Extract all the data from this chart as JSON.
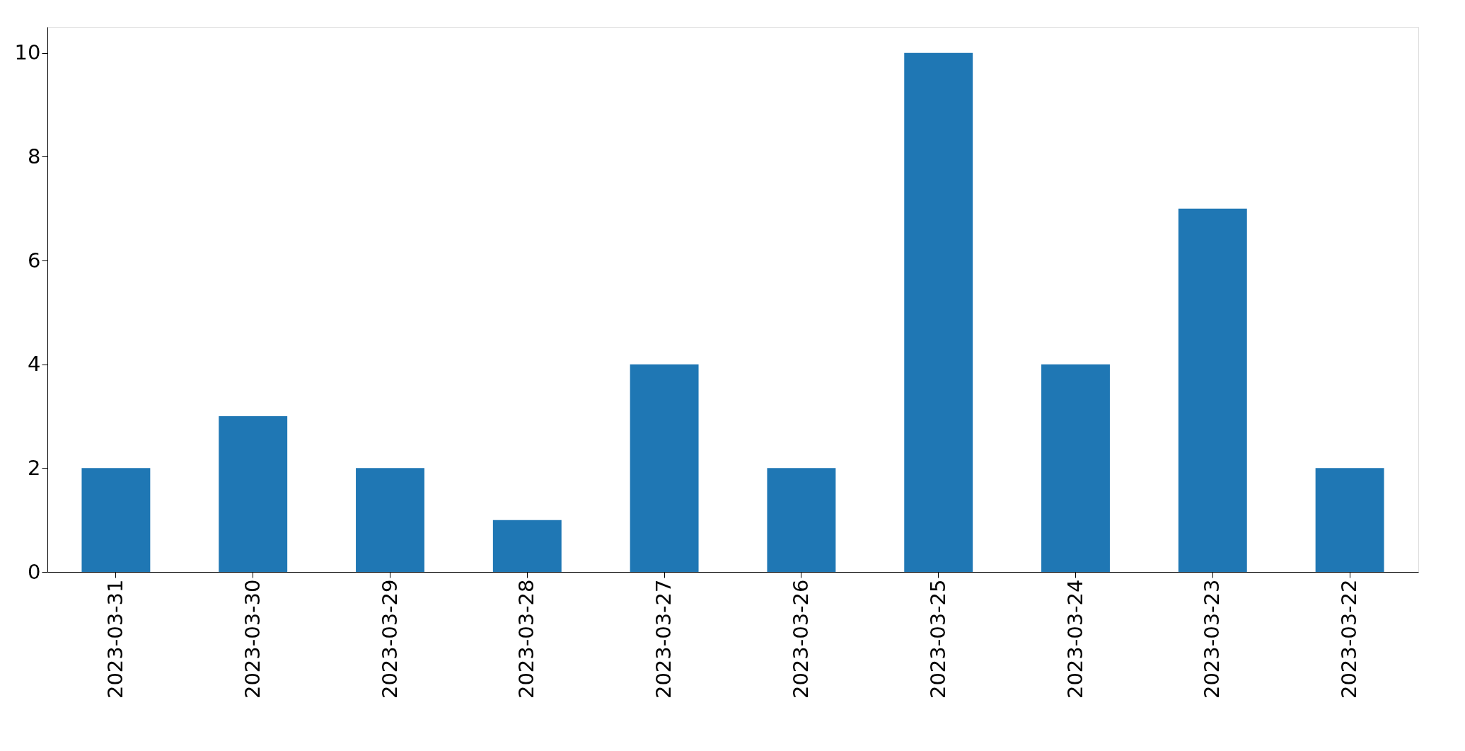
{
  "chart_data": {
    "type": "bar",
    "categories": [
      "2023-03-31",
      "2023-03-30",
      "2023-03-29",
      "2023-03-28",
      "2023-03-27",
      "2023-03-26",
      "2023-03-25",
      "2023-03-24",
      "2023-03-23",
      "2023-03-22"
    ],
    "values": [
      2,
      3,
      2,
      1,
      4,
      2,
      10,
      4,
      7,
      2
    ],
    "color": "#1f77b4",
    "ylim": [
      0,
      10.5
    ],
    "yticks": [
      0,
      2,
      4,
      6,
      8,
      10
    ],
    "grid": false
  }
}
